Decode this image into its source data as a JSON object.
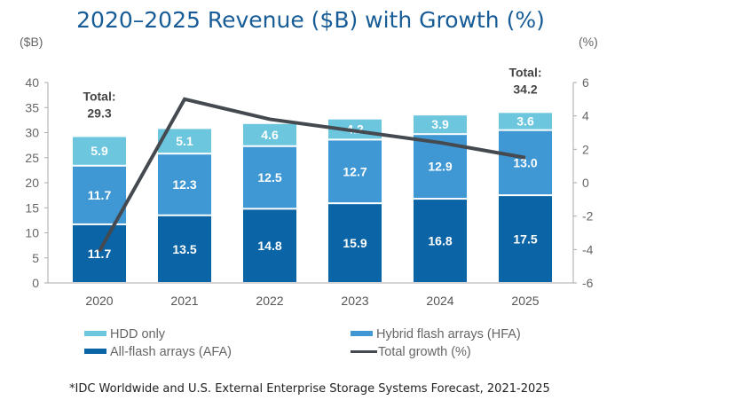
{
  "chart_data": {
    "type": "bar",
    "stacked": true,
    "title": "2020–2025 Revenue ($B) with Growth (%)",
    "y_left_label": "($B)",
    "y_right_label": "(%)",
    "ylim_left": [
      0,
      40
    ],
    "ylim_right": [
      -6,
      6
    ],
    "yticks_left": [
      0,
      5,
      10,
      15,
      20,
      25,
      30,
      35,
      40
    ],
    "yticks_right": [
      -6,
      -4,
      -2,
      0,
      2,
      4,
      6
    ],
    "categories": [
      "2020",
      "2021",
      "2022",
      "2023",
      "2024",
      "2025"
    ],
    "series": [
      {
        "name": "All-flash arrays (AFA)",
        "type": "bar",
        "color": "#0a64a5",
        "values": [
          11.7,
          13.5,
          14.8,
          15.9,
          16.8,
          17.5
        ]
      },
      {
        "name": "Hybrid flash arrays (HFA)",
        "type": "bar",
        "color": "#3f98d4",
        "values": [
          11.7,
          12.3,
          12.5,
          12.7,
          12.9,
          13.0
        ]
      },
      {
        "name": "HDD only",
        "type": "bar",
        "color": "#6bc6de",
        "values": [
          5.9,
          5.1,
          4.6,
          4.2,
          3.9,
          3.6
        ]
      },
      {
        "name": "Total growth (%)",
        "type": "line",
        "axis": "right",
        "color": "#444a50",
        "values": [
          -4.1,
          5.0,
          3.8,
          3.1,
          2.4,
          1.5
        ]
      }
    ],
    "annotations": [
      {
        "category": "2020",
        "label": "Total:",
        "value": "29.3"
      },
      {
        "category": "2025",
        "label": "Total:",
        "value": "34.2"
      }
    ],
    "legend_order": [
      "HDD only",
      "Hybrid flash arrays (HFA)",
      "All-flash arrays (AFA)",
      "Total growth (%)"
    ],
    "legend_position": "bottom",
    "grid": false
  },
  "footnote": "*IDC Worldwide and U.S. External Enterprise Storage Systems Forecast, 2021-2025"
}
